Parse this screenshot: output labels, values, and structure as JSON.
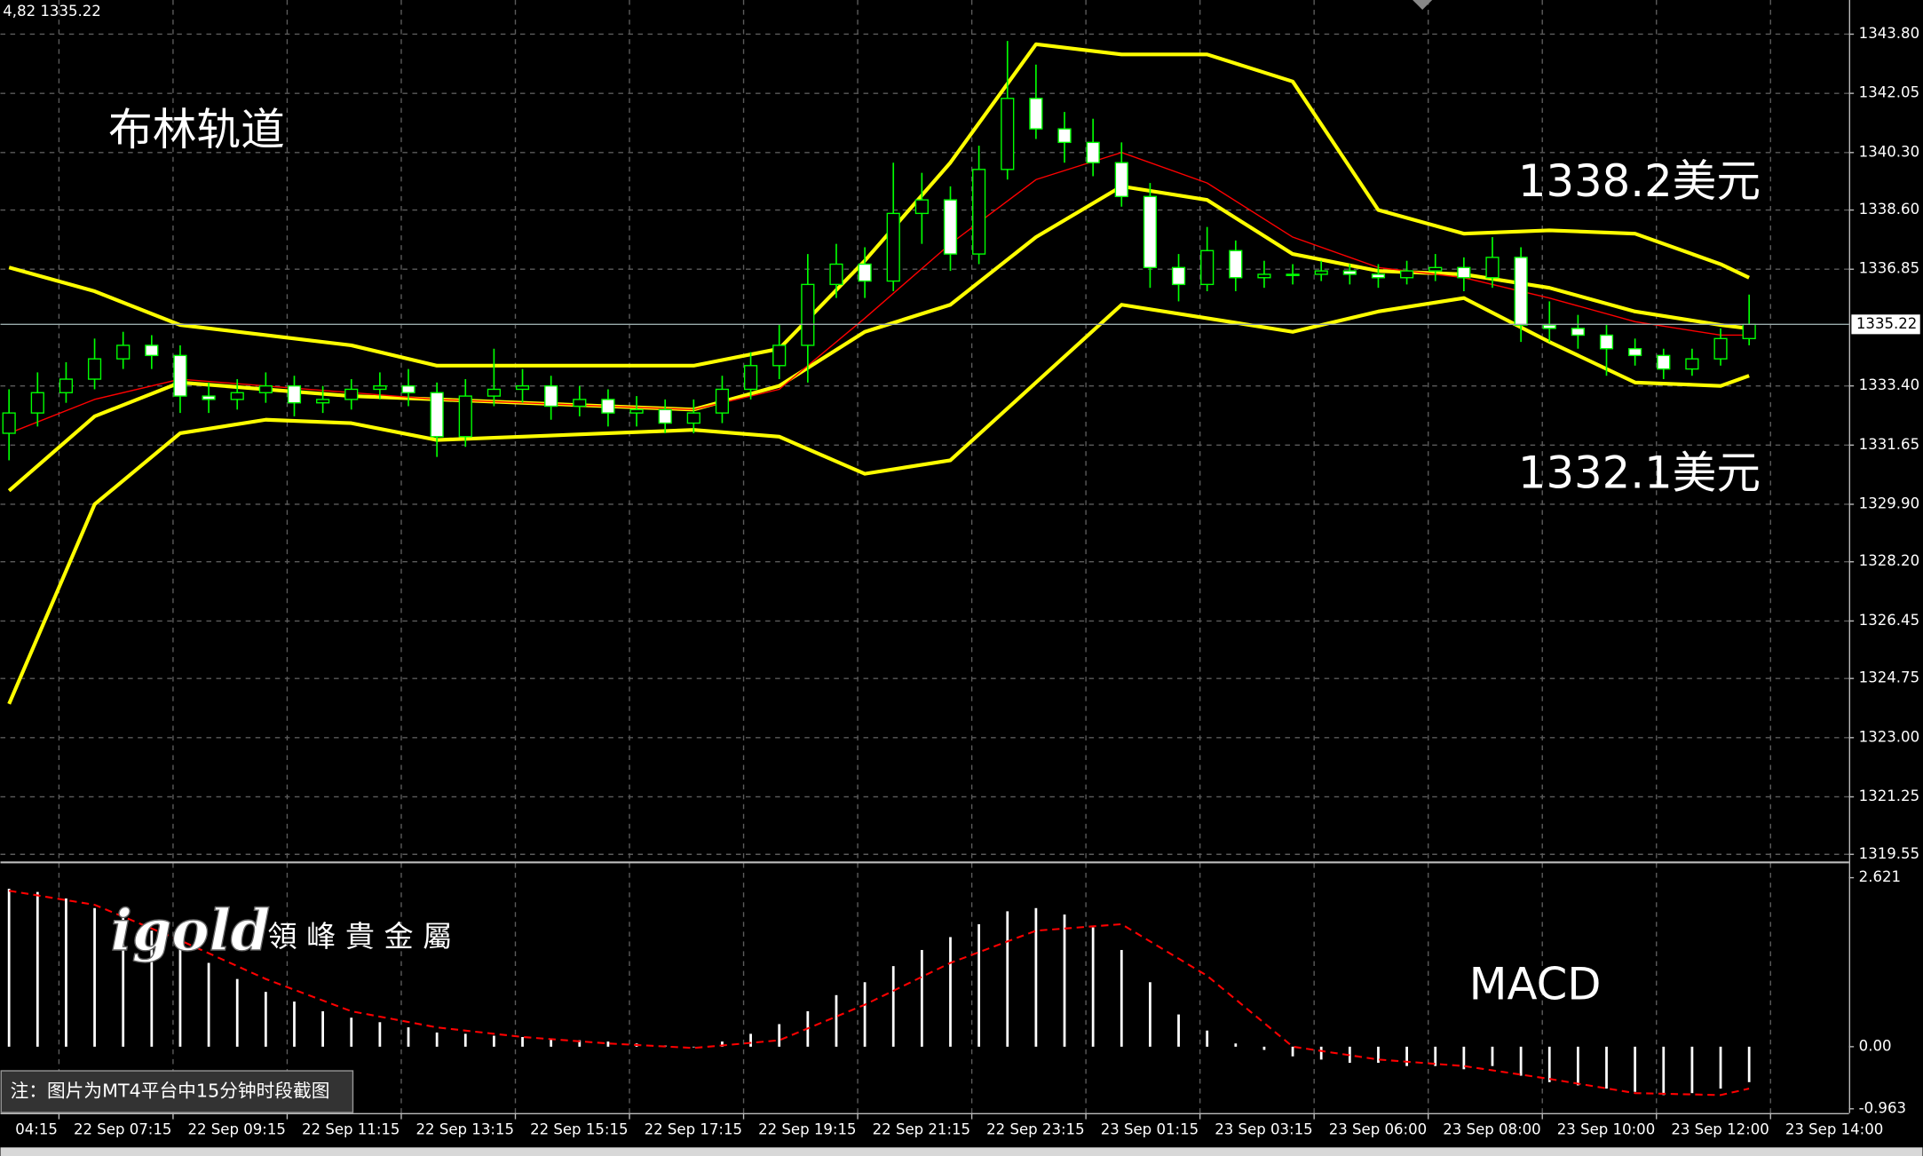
{
  "header": "4,82 1335.22",
  "logo": {
    "brand": "igold",
    "name": "領 峰 貴 金 屬"
  },
  "note": "注：图片为MT4平台中15分钟时段截图",
  "chart_data": [
    {
      "type": "candlestick",
      "annotations": [
        "布林轨道",
        "1338.2美元",
        "1332.1美元"
      ],
      "xlim": [
        -0.3,
        64.5
      ],
      "ylim": [
        1319.33,
        1344.81
      ],
      "yticks": [
        {
          "value": 1343.8,
          "label": "1343.80"
        },
        {
          "value": 1342.05,
          "label": "1342.05"
        },
        {
          "value": 1340.3,
          "label": "1340.30"
        },
        {
          "value": 1338.6,
          "label": "1338.60"
        },
        {
          "value": 1336.85,
          "label": "1336.85"
        },
        {
          "value": 1333.4,
          "label": "1333.40"
        },
        {
          "value": 1331.65,
          "label": "1331.65"
        },
        {
          "value": 1329.9,
          "label": "1329.90"
        },
        {
          "value": 1328.2,
          "label": "1328.20"
        },
        {
          "value": 1326.45,
          "label": "1326.45"
        },
        {
          "value": 1324.75,
          "label": "1324.75"
        },
        {
          "value": 1323.0,
          "label": "1323.00"
        },
        {
          "value": 1321.25,
          "label": "1321.25"
        },
        {
          "value": 1319.55,
          "label": "1319.55"
        }
      ],
      "last_price": 1335.22,
      "grid": true,
      "colors": {
        "up": "#000000",
        "down": "#ffffff",
        "wick": "#00ff00"
      },
      "open": [
        1332.0,
        1332.6,
        1333.2,
        1333.6,
        1334.2,
        1334.6,
        1334.3,
        1333.1,
        1333.0,
        1333.2,
        1333.4,
        1332.9,
        1333.0,
        1333.3,
        1333.4,
        1333.2,
        1331.9,
        1333.1,
        1333.3,
        1333.4,
        1332.8,
        1333.0,
        1332.6,
        1332.7,
        1332.3,
        1332.6,
        1333.3,
        1334.0,
        1334.6,
        1336.4,
        1337.0,
        1336.5,
        1338.5,
        1338.9,
        1337.3,
        1339.8,
        1341.9,
        1341.0,
        1340.6,
        1340.0,
        1339.0,
        1336.9,
        1336.4,
        1337.4,
        1336.6,
        1336.7,
        1336.7,
        1336.8,
        1336.7,
        1336.6,
        1336.8,
        1336.9,
        1336.6,
        1337.2,
        1335.2,
        1335.1,
        1334.9,
        1334.5,
        1334.3,
        1333.9,
        1334.2,
        1334.8
      ],
      "high": [
        1333.3,
        1333.8,
        1334.1,
        1334.8,
        1335.0,
        1334.9,
        1334.6,
        1333.5,
        1333.6,
        1333.8,
        1333.7,
        1333.4,
        1333.6,
        1333.8,
        1333.9,
        1333.5,
        1333.6,
        1334.5,
        1333.9,
        1333.7,
        1333.4,
        1333.3,
        1333.1,
        1333.0,
        1333.0,
        1333.7,
        1334.4,
        1335.2,
        1337.3,
        1337.6,
        1337.5,
        1340.0,
        1339.7,
        1339.3,
        1340.5,
        1343.6,
        1342.9,
        1341.5,
        1341.3,
        1340.6,
        1339.4,
        1337.3,
        1338.1,
        1337.7,
        1337.1,
        1337.0,
        1337.1,
        1337.0,
        1337.0,
        1337.1,
        1337.3,
        1337.2,
        1337.8,
        1337.5,
        1335.9,
        1335.5,
        1335.2,
        1334.8,
        1334.5,
        1334.5,
        1335.1,
        1336.1
      ],
      "low": [
        1331.2,
        1332.2,
        1332.9,
        1333.3,
        1333.9,
        1333.9,
        1332.6,
        1332.6,
        1332.7,
        1332.9,
        1332.5,
        1332.6,
        1332.7,
        1333.0,
        1332.8,
        1331.3,
        1331.6,
        1332.8,
        1332.9,
        1332.4,
        1332.5,
        1332.2,
        1332.2,
        1332.0,
        1332.0,
        1332.3,
        1333.0,
        1333.6,
        1333.5,
        1336.0,
        1336.0,
        1336.2,
        1337.6,
        1336.8,
        1337.0,
        1339.5,
        1340.7,
        1340.0,
        1339.6,
        1338.7,
        1336.3,
        1335.9,
        1336.2,
        1336.2,
        1336.3,
        1336.4,
        1336.5,
        1336.4,
        1336.3,
        1336.4,
        1336.5,
        1336.2,
        1336.3,
        1334.7,
        1334.7,
        1334.5,
        1333.7,
        1334.0,
        1333.6,
        1333.7,
        1334.0,
        1334.6
      ],
      "close": [
        1332.6,
        1333.2,
        1333.6,
        1334.2,
        1334.6,
        1334.3,
        1333.1,
        1333.0,
        1333.2,
        1333.4,
        1332.9,
        1333.0,
        1333.3,
        1333.4,
        1333.2,
        1331.9,
        1333.1,
        1333.3,
        1333.4,
        1332.8,
        1333.0,
        1332.6,
        1332.7,
        1332.3,
        1332.6,
        1333.3,
        1334.0,
        1334.6,
        1336.4,
        1337.0,
        1336.5,
        1338.5,
        1338.9,
        1337.3,
        1339.8,
        1341.9,
        1341.0,
        1340.6,
        1340.0,
        1339.0,
        1336.9,
        1336.4,
        1337.4,
        1336.6,
        1336.7,
        1336.7,
        1336.8,
        1336.7,
        1336.6,
        1336.8,
        1336.9,
        1336.6,
        1337.2,
        1335.2,
        1335.1,
        1334.9,
        1334.5,
        1334.3,
        1333.9,
        1334.2,
        1334.8,
        1335.22
      ],
      "line_x": [
        0,
        3,
        6,
        9,
        12,
        15,
        18,
        21,
        24,
        27,
        30,
        33,
        36,
        39,
        42,
        45,
        48,
        51,
        54,
        57,
        60,
        61
      ],
      "lines": [
        {
          "color": "#ffff00",
          "width": 3,
          "values": [
            1336.9,
            1336.2,
            1335.2,
            1334.9,
            1334.6,
            1334.0,
            1334.0,
            1334.0,
            1334.0,
            1334.5,
            1337.1,
            1340.0,
            1343.5,
            1343.2,
            1343.2,
            1342.4,
            1338.6,
            1337.9,
            1338.0,
            1337.9,
            1337.0,
            1336.6
          ]
        },
        {
          "color": "#ffff00",
          "width": 3,
          "values": [
            1330.3,
            1332.5,
            1333.5,
            1333.3,
            1333.1,
            1333.0,
            1332.9,
            1332.8,
            1332.7,
            1333.4,
            1335.0,
            1335.8,
            1337.8,
            1339.3,
            1338.9,
            1337.3,
            1336.8,
            1336.7,
            1336.3,
            1335.6,
            1335.2,
            1335.1
          ]
        },
        {
          "color": "#ffff00",
          "width": 3,
          "values": [
            1324.0,
            1329.9,
            1332.0,
            1332.4,
            1332.3,
            1331.8,
            1331.9,
            1332.0,
            1332.1,
            1331.9,
            1330.8,
            1331.2,
            1333.5,
            1335.8,
            1335.4,
            1335.0,
            1335.6,
            1336.0,
            1334.7,
            1333.5,
            1333.4,
            1333.7
          ]
        },
        {
          "color": "#ff0000",
          "width": 1,
          "values": [
            1332.0,
            1333.0,
            1333.6,
            1333.4,
            1333.2,
            1333.0,
            1332.9,
            1332.8,
            1332.7,
            1333.3,
            1335.4,
            1337.6,
            1339.5,
            1340.3,
            1339.4,
            1337.8,
            1336.9,
            1336.6,
            1336.0,
            1335.3,
            1334.9,
            1334.9
          ]
        }
      ]
    },
    {
      "type": "bar",
      "title": "MACD",
      "color": "#ffffff",
      "xlim": [
        -0.3,
        64.5
      ],
      "ylim": [
        -1.03,
        2.83
      ],
      "yticks": [
        2.621,
        {
          "value": 0,
          "label": "0.00"
        },
        -0.963
      ],
      "xticks": [
        {
          "value": -2.25,
          "label": "04:15"
        },
        {
          "value": 1.75,
          "label": "22 Sep 07:15"
        },
        {
          "value": 5.75,
          "label": "22 Sep 09:15"
        },
        {
          "value": 9.75,
          "label": "22 Sep 11:15"
        },
        {
          "value": 13.75,
          "label": "22 Sep 13:15"
        },
        {
          "value": 17.75,
          "label": "22 Sep 15:15"
        },
        {
          "value": 21.75,
          "label": "22 Sep 17:15"
        },
        {
          "value": 25.75,
          "label": "22 Sep 19:15"
        },
        {
          "value": 29.75,
          "label": "22 Sep 21:15"
        },
        {
          "value": 33.75,
          "label": "22 Sep 23:15"
        },
        {
          "value": 37.75,
          "label": "23 Sep 01:15"
        },
        {
          "value": 41.75,
          "label": "23 Sep 03:15"
        },
        {
          "value": 45.75,
          "label": "23 Sep 06:00"
        },
        {
          "value": 49.75,
          "label": "23 Sep 08:00"
        },
        {
          "value": 53.75,
          "label": "23 Sep 10:00"
        },
        {
          "value": 57.75,
          "label": "23 Sep 12:00"
        },
        {
          "value": 61.75,
          "label": "23 Sep 14:00"
        }
      ],
      "values": [
        2.45,
        2.4,
        2.3,
        2.15,
        2.0,
        1.8,
        1.55,
        1.3,
        1.05,
        0.85,
        0.7,
        0.55,
        0.45,
        0.38,
        0.3,
        0.22,
        0.2,
        0.17,
        0.15,
        0.12,
        0.1,
        0.08,
        0.05,
        0.02,
        0.0,
        0.08,
        0.2,
        0.35,
        0.55,
        0.8,
        1.0,
        1.25,
        1.5,
        1.7,
        1.9,
        2.1,
        2.15,
        2.05,
        1.85,
        1.5,
        1.0,
        0.5,
        0.25,
        0.05,
        -0.05,
        -0.15,
        -0.2,
        -0.25,
        -0.25,
        -0.3,
        -0.3,
        -0.35,
        -0.3,
        -0.45,
        -0.55,
        -0.6,
        -0.65,
        -0.7,
        -0.75,
        -0.72,
        -0.65,
        -0.55
      ],
      "signal": {
        "color": "#ff0000",
        "x": [
          0,
          3,
          6,
          9,
          12,
          15,
          18,
          21,
          24,
          27,
          30,
          33,
          36,
          39,
          42,
          45,
          48,
          51,
          54,
          57,
          60,
          61
        ],
        "values": [
          2.42,
          2.2,
          1.65,
          1.05,
          0.55,
          0.3,
          0.15,
          0.05,
          -0.02,
          0.1,
          0.65,
          1.3,
          1.8,
          1.9,
          1.1,
          0.0,
          -0.2,
          -0.3,
          -0.5,
          -0.72,
          -0.75,
          -0.65
        ]
      }
    }
  ]
}
